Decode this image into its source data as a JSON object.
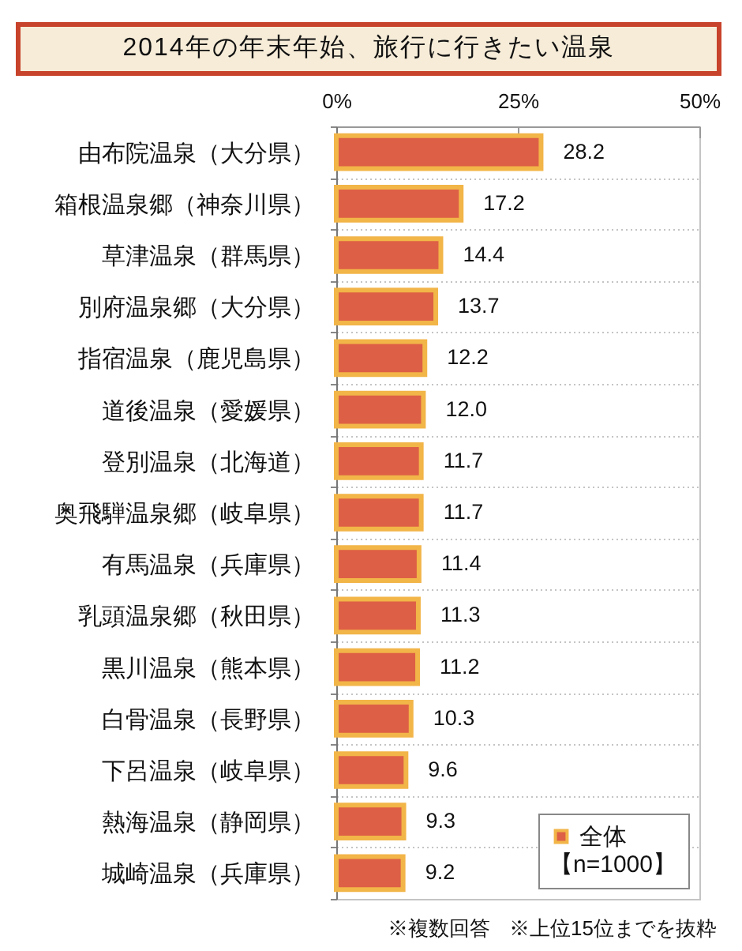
{
  "chart_data": {
    "type": "bar",
    "orientation": "horizontal",
    "title": "2014年の年末年始、旅行に行きたい温泉",
    "categories": [
      "由布院温泉（大分県）",
      "箱根温泉郷（神奈川県）",
      "草津温泉（群馬県）",
      "別府温泉郷（大分県）",
      "指宿温泉（鹿児島県）",
      "道後温泉（愛媛県）",
      "登別温泉（北海道）",
      "奥飛騨温泉郷（岐阜県）",
      "有馬温泉（兵庫県）",
      "乳頭温泉郷（秋田県）",
      "黒川温泉（熊本県）",
      "白骨温泉（長野県）",
      "下呂温泉（岐阜県）",
      "熱海温泉（静岡県）",
      "城崎温泉（兵庫県）"
    ],
    "series": [
      {
        "name": "全体",
        "color": "#dd5f45",
        "values": [
          28.2,
          17.2,
          14.4,
          13.7,
          12.2,
          12.0,
          11.7,
          11.7,
          11.4,
          11.3,
          11.2,
          10.3,
          9.6,
          9.3,
          9.2
        ],
        "value_labels": [
          "28.2",
          "17.2",
          "14.4",
          "13.7",
          "12.2",
          "12.0",
          "11.7",
          "11.7",
          "11.4",
          "11.3",
          "11.2",
          "10.3",
          "9.6",
          "9.3",
          "9.2"
        ]
      }
    ],
    "xlim": [
      0,
      50
    ],
    "xticks": [
      {
        "value": 0,
        "label": "0%"
      },
      {
        "value": 25,
        "label": "25%"
      },
      {
        "value": 50,
        "label": "50%"
      }
    ],
    "grid": "y",
    "legend": "bottom right",
    "legend_title": "【n=1000】",
    "annotations": [
      "※複数回答",
      "※上位15位までを抜粋"
    ]
  }
}
